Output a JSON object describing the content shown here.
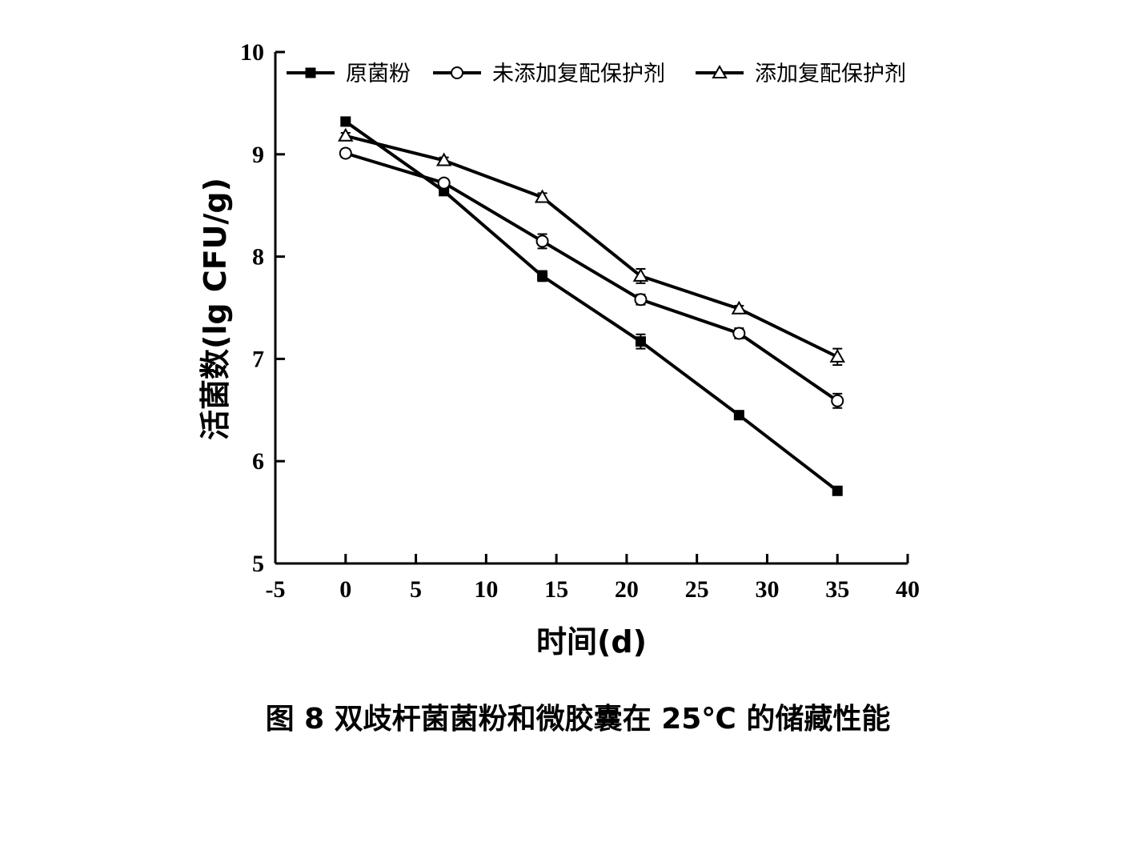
{
  "chart_data": {
    "type": "line",
    "caption": "图 8  双歧杆菌菌粉和微胶囊在 25℃ 的储藏性能",
    "xlabel": "时间(d)",
    "ylabel": "活菌数(lg CFU/g)",
    "xlim": [
      -5,
      40
    ],
    "ylim": [
      5,
      10
    ],
    "xticks": [
      "-5",
      "0",
      "5",
      "10",
      "15",
      "20",
      "25",
      "30",
      "35",
      "40"
    ],
    "yticks": [
      "5",
      "6",
      "7",
      "8",
      "9",
      "10"
    ],
    "x": [
      0,
      7,
      14,
      21,
      28,
      35
    ],
    "legend_position": "top",
    "grid": false,
    "series": [
      {
        "name": "原菌粉",
        "marker": "filled-square",
        "values": [
          9.32,
          8.64,
          7.81,
          7.17,
          6.45,
          5.71
        ],
        "errors": [
          0.03,
          0.03,
          0.05,
          0.07,
          0.03,
          0.03
        ]
      },
      {
        "name": "未添加复配保护剂",
        "marker": "open-circle",
        "values": [
          9.01,
          8.72,
          8.15,
          7.58,
          7.25,
          6.59
        ],
        "errors": [
          0.04,
          0.03,
          0.07,
          0.05,
          0.05,
          0.07
        ]
      },
      {
        "name": "添加复配保护剂",
        "marker": "open-triangle",
        "values": [
          9.18,
          8.94,
          8.58,
          7.81,
          7.49,
          7.02
        ],
        "errors": [
          0.03,
          0.03,
          0.04,
          0.07,
          0.03,
          0.08
        ]
      }
    ]
  }
}
